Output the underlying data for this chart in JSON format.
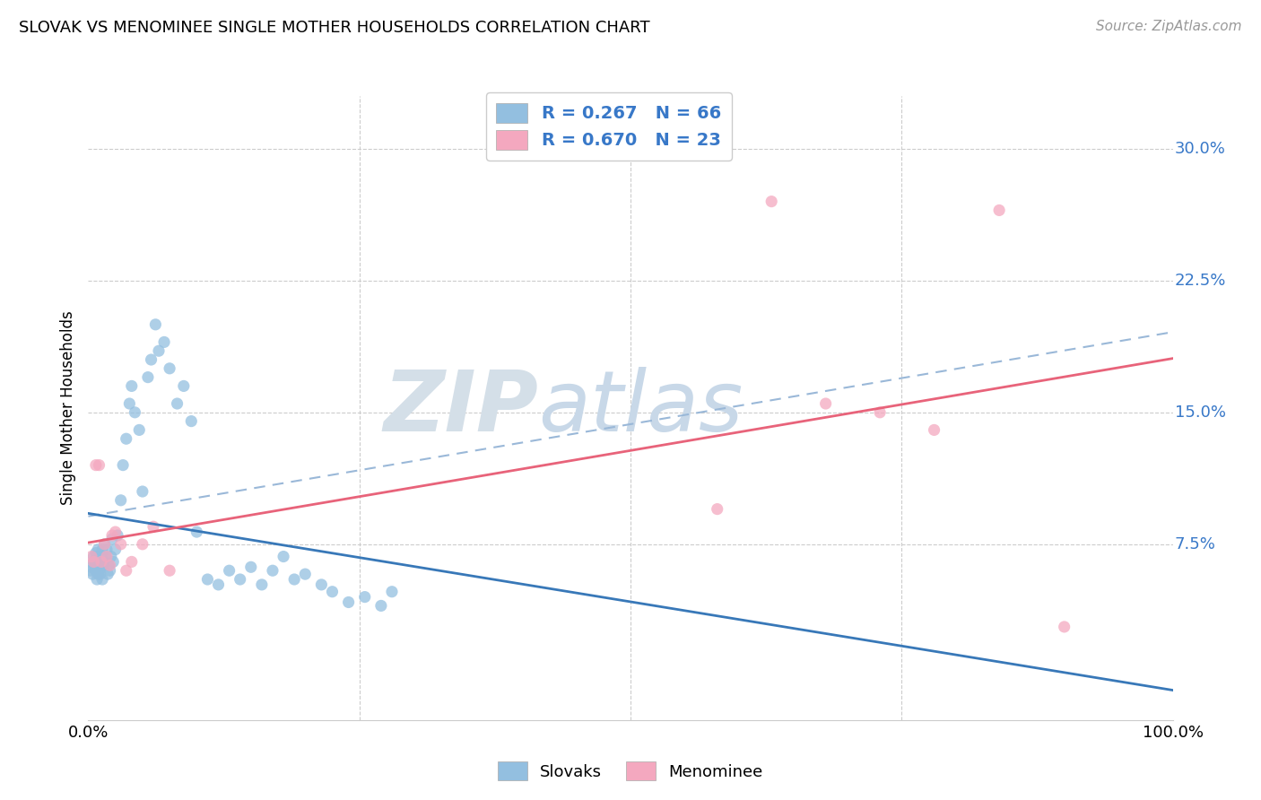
{
  "title": "SLOVAK VS MENOMINEE SINGLE MOTHER HOUSEHOLDS CORRELATION CHART",
  "source": "Source: ZipAtlas.com",
  "ylabel": "Single Mother Households",
  "xlim": [
    0,
    1
  ],
  "ylim": [
    -0.025,
    0.33
  ],
  "yticks": [
    0.075,
    0.15,
    0.225,
    0.3
  ],
  "ytick_labels": [
    "7.5%",
    "15.0%",
    "22.5%",
    "30.0%"
  ],
  "color_slovak": "#93bfe0",
  "color_menominee": "#f4a8bf",
  "color_line_slovak": "#3878b8",
  "color_line_menominee": "#e8637a",
  "color_dashed": "#9ab8d8",
  "background_color": "#ffffff",
  "grid_color": "#cccccc",
  "watermark_text": "ZIPAtlas",
  "watermark_color": "#d0e0ee",
  "slovak_x": [
    0.002,
    0.003,
    0.004,
    0.005,
    0.005,
    0.006,
    0.007,
    0.007,
    0.008,
    0.008,
    0.009,
    0.009,
    0.01,
    0.01,
    0.011,
    0.011,
    0.012,
    0.013,
    0.013,
    0.014,
    0.015,
    0.015,
    0.016,
    0.017,
    0.018,
    0.019,
    0.02,
    0.021,
    0.022,
    0.023,
    0.025,
    0.027,
    0.03,
    0.032,
    0.035,
    0.038,
    0.04,
    0.043,
    0.047,
    0.05,
    0.055,
    0.058,
    0.062,
    0.065,
    0.07,
    0.075,
    0.082,
    0.088,
    0.095,
    0.1,
    0.11,
    0.12,
    0.13,
    0.14,
    0.15,
    0.16,
    0.17,
    0.18,
    0.19,
    0.2,
    0.215,
    0.225,
    0.24,
    0.255,
    0.27,
    0.28
  ],
  "slovak_y": [
    0.06,
    0.062,
    0.058,
    0.065,
    0.068,
    0.063,
    0.06,
    0.07,
    0.055,
    0.068,
    0.058,
    0.072,
    0.063,
    0.06,
    0.065,
    0.058,
    0.068,
    0.055,
    0.072,
    0.063,
    0.065,
    0.075,
    0.068,
    0.072,
    0.058,
    0.063,
    0.06,
    0.068,
    0.078,
    0.065,
    0.072,
    0.08,
    0.1,
    0.12,
    0.135,
    0.155,
    0.165,
    0.15,
    0.14,
    0.105,
    0.17,
    0.18,
    0.2,
    0.185,
    0.19,
    0.175,
    0.155,
    0.165,
    0.145,
    0.082,
    0.055,
    0.052,
    0.06,
    0.055,
    0.062,
    0.052,
    0.06,
    0.068,
    0.055,
    0.058,
    0.052,
    0.048,
    0.042,
    0.045,
    0.04,
    0.048
  ],
  "menominee_x": [
    0.003,
    0.005,
    0.007,
    0.01,
    0.012,
    0.015,
    0.017,
    0.02,
    0.022,
    0.025,
    0.03,
    0.035,
    0.04,
    0.05,
    0.06,
    0.075,
    0.58,
    0.63,
    0.68,
    0.73,
    0.78,
    0.84,
    0.9
  ],
  "menominee_y": [
    0.068,
    0.065,
    0.12,
    0.12,
    0.065,
    0.075,
    0.068,
    0.063,
    0.08,
    0.082,
    0.075,
    0.06,
    0.065,
    0.075,
    0.085,
    0.06,
    0.095,
    0.27,
    0.155,
    0.15,
    0.14,
    0.265,
    0.028
  ],
  "note": "Slovak regression: R=0.267, N=66; Menominee regression: R=0.670, N=23"
}
